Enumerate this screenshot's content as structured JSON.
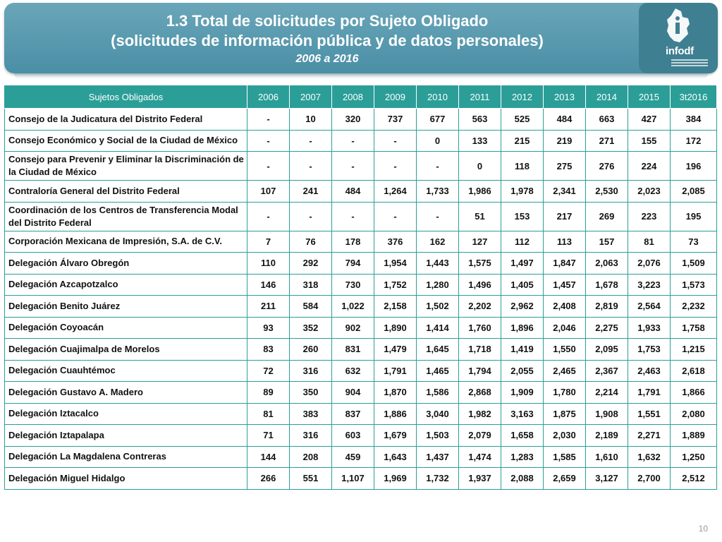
{
  "header": {
    "title_line1": "1.3 Total de solicitudes por Sujeto Obligado",
    "title_line2": "(solicitudes de información pública y de datos personales)",
    "subtitle": "2006 a 2016"
  },
  "logo": {
    "text": "infodf",
    "icon": "infodf-logo"
  },
  "table": {
    "columns": [
      "Sujetos Obligados",
      "2006",
      "2007",
      "2008",
      "2009",
      "2010",
      "2011",
      "2012",
      "2013",
      "2014",
      "2015",
      "3t2016"
    ],
    "rows": [
      {
        "name": "Consejo de la Judicatura del Distrito Federal",
        "values": [
          "-",
          "10",
          "320",
          "737",
          "677",
          "563",
          "525",
          "484",
          "663",
          "427",
          "384"
        ]
      },
      {
        "name": "Consejo Económico y Social de la Ciudad de México",
        "values": [
          "-",
          "-",
          "-",
          "-",
          "0",
          "133",
          "215",
          "219",
          "271",
          "155",
          "172"
        ]
      },
      {
        "name": "Consejo para Prevenir y Eliminar la Discriminación de la Ciudad de México",
        "values": [
          "-",
          "-",
          "-",
          "-",
          "-",
          "0",
          "118",
          "275",
          "276",
          "224",
          "196"
        ]
      },
      {
        "name": "Contraloría General del Distrito Federal",
        "values": [
          "107",
          "241",
          "484",
          "1,264",
          "1,733",
          "1,986",
          "1,978",
          "2,341",
          "2,530",
          "2,023",
          "2,085"
        ]
      },
      {
        "name": "Coordinación de los Centros de Transferencia Modal del Distrito Federal",
        "values": [
          "-",
          "-",
          "-",
          "-",
          "-",
          "51",
          "153",
          "217",
          "269",
          "223",
          "195"
        ]
      },
      {
        "name": "Corporación Mexicana de Impresión, S.A. de C.V.",
        "values": [
          "7",
          "76",
          "178",
          "376",
          "162",
          "127",
          "112",
          "113",
          "157",
          "81",
          "73"
        ]
      },
      {
        "name": "Delegación Álvaro Obregón",
        "values": [
          "110",
          "292",
          "794",
          "1,954",
          "1,443",
          "1,575",
          "1,497",
          "1,847",
          "2,063",
          "2,076",
          "1,509"
        ]
      },
      {
        "name": "Delegación Azcapotzalco",
        "values": [
          "146",
          "318",
          "730",
          "1,752",
          "1,280",
          "1,496",
          "1,405",
          "1,457",
          "1,678",
          "3,223",
          "1,573"
        ]
      },
      {
        "name": "Delegación Benito Juárez",
        "values": [
          "211",
          "584",
          "1,022",
          "2,158",
          "1,502",
          "2,202",
          "2,962",
          "2,408",
          "2,819",
          "2,564",
          "2,232"
        ]
      },
      {
        "name": "Delegación Coyoacán",
        "values": [
          "93",
          "352",
          "902",
          "1,890",
          "1,414",
          "1,760",
          "1,896",
          "2,046",
          "2,275",
          "1,933",
          "1,758"
        ]
      },
      {
        "name": "Delegación Cuajimalpa de Morelos",
        "values": [
          "83",
          "260",
          "831",
          "1,479",
          "1,645",
          "1,718",
          "1,419",
          "1,550",
          "2,095",
          "1,753",
          "1,215"
        ]
      },
      {
        "name": "Delegación Cuauhtémoc",
        "values": [
          "72",
          "316",
          "632",
          "1,791",
          "1,465",
          "1,794",
          "2,055",
          "2,465",
          "2,367",
          "2,463",
          "2,618"
        ]
      },
      {
        "name": "Delegación Gustavo A. Madero",
        "values": [
          "89",
          "350",
          "904",
          "1,870",
          "1,586",
          "2,868",
          "1,909",
          "1,780",
          "2,214",
          "1,791",
          "1,866"
        ]
      },
      {
        "name": "Delegación Iztacalco",
        "values": [
          "81",
          "383",
          "837",
          "1,886",
          "3,040",
          "1,982",
          "3,163",
          "1,875",
          "1,908",
          "1,551",
          "2,080"
        ]
      },
      {
        "name": "Delegación Iztapalapa",
        "values": [
          "71",
          "316",
          "603",
          "1,679",
          "1,503",
          "2,079",
          "1,658",
          "2,030",
          "2,189",
          "2,271",
          "1,889"
        ]
      },
      {
        "name": "Delegación La Magdalena Contreras",
        "values": [
          "144",
          "208",
          "459",
          "1,643",
          "1,437",
          "1,474",
          "1,283",
          "1,585",
          "1,610",
          "1,632",
          "1,250"
        ]
      },
      {
        "name": "Delegación Miguel Hidalgo",
        "values": [
          "266",
          "551",
          "1,107",
          "1,969",
          "1,732",
          "1,937",
          "2,088",
          "2,659",
          "3,127",
          "2,700",
          "2,512"
        ]
      }
    ]
  },
  "footer": {
    "page_number": "10"
  },
  "colors": {
    "header_bg": "#4a8fa6",
    "table_accent": "#2b9e98",
    "text": "#111111"
  }
}
